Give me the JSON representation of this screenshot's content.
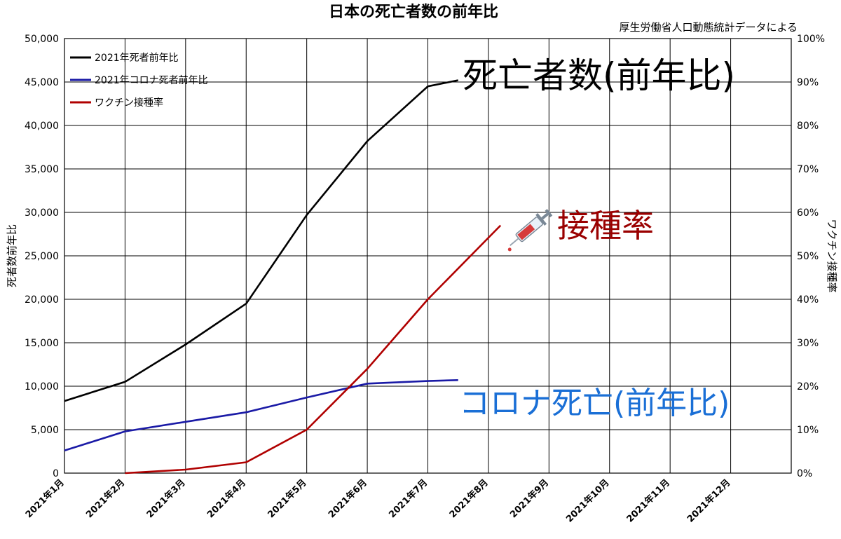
{
  "chart_data": {
    "type": "line",
    "title": "日本の死亡者数の前年比",
    "source_note": "厚生労働省人口動態統計データによる",
    "ylabel_left": "死者数前年比",
    "ylabel_right": "ワクチン接種率",
    "categories": [
      "2021年1月",
      "2021年2月",
      "2021年3月",
      "2021年4月",
      "2021年5月",
      "2021年6月",
      "2021年7月",
      "2021年8月",
      "2021年9月",
      "2021年10月",
      "2021年11月",
      "2021年12月"
    ],
    "y_left_ticks": [
      "0",
      "5,000",
      "10,000",
      "15,000",
      "20,000",
      "25,000",
      "30,000",
      "35,000",
      "40,000",
      "45,000",
      "50,000"
    ],
    "y_right_ticks": [
      "0%",
      "10%",
      "20%",
      "30%",
      "40%",
      "50%",
      "60%",
      "70%",
      "80%",
      "90%",
      "100%"
    ],
    "ylim_left": [
      0,
      50000
    ],
    "ylim_right": [
      0,
      100
    ],
    "grid": true,
    "legend_position": "top-left",
    "series": [
      {
        "name": "2021年死者前年比",
        "axis": "left",
        "color": "#000000",
        "x": [
          0,
          1,
          2,
          3,
          4,
          5,
          6,
          6.5
        ],
        "values": [
          8300,
          10500,
          14800,
          19500,
          29700,
          38200,
          44500,
          45200
        ]
      },
      {
        "name": "2021年コロナ死者前年比",
        "axis": "left",
        "color": "#1a1aa6",
        "x": [
          0,
          1,
          2,
          3,
          4,
          5,
          6,
          6.5
        ],
        "values": [
          2600,
          4800,
          5900,
          7000,
          8700,
          10300,
          10600,
          10700
        ]
      },
      {
        "name": "ワクチン接種率",
        "axis": "right",
        "color": "#b00000",
        "x": [
          1,
          2,
          3,
          4,
          5,
          6,
          7.2
        ],
        "values": [
          0,
          0.8,
          2.5,
          10,
          24,
          40,
          57
        ]
      }
    ],
    "annotations": [
      {
        "text": "死亡者数(前年比)",
        "color": "#000000"
      },
      {
        "text": "接種率",
        "color": "#9a0000"
      },
      {
        "text": "コロナ死亡(前年比)",
        "color": "#1a6fd6"
      }
    ]
  }
}
